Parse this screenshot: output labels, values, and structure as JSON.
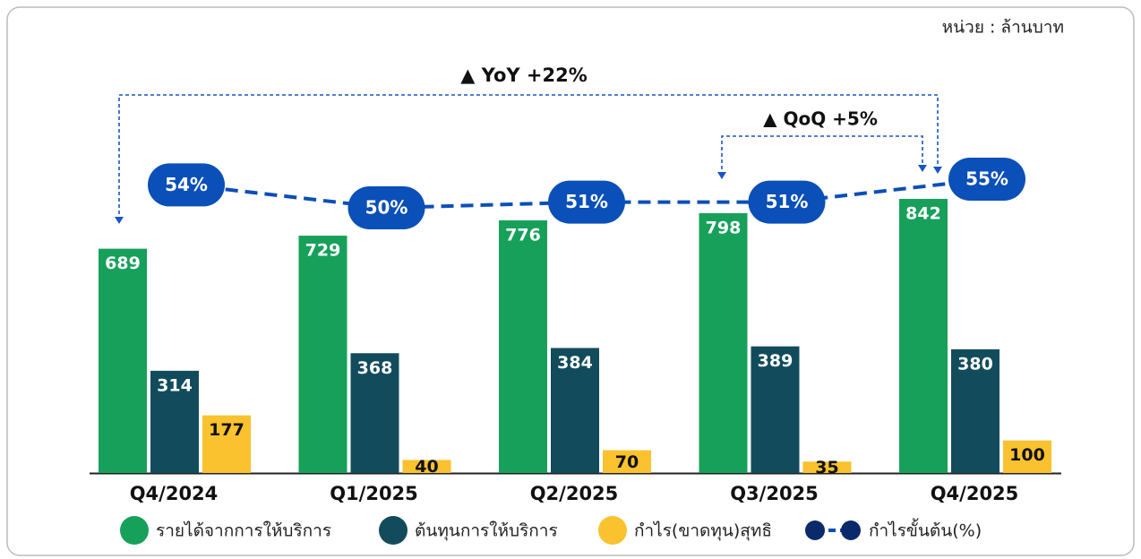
{
  "chart_data": {
    "type": "bar",
    "unit_label": "หน่วย : ล้านบาท",
    "annotations": [
      "▲ YoY +22%",
      "▲ QoQ +5%"
    ],
    "categories": [
      "Q4/2024",
      "Q1/2025",
      "Q2/2025",
      "Q3/2025",
      "Q4/2025"
    ],
    "series": [
      {
        "name": "รายได้จากการให้บริการ",
        "color": "#17a05a",
        "values": [
          689,
          729,
          776,
          798,
          842
        ]
      },
      {
        "name": "ต้นทุนการให้บริการ",
        "color": "#124c5c",
        "values": [
          314,
          368,
          384,
          389,
          380
        ]
      },
      {
        "name": "กำไร(ขาดทุน)สุทธิ",
        "color": "#f9c22e",
        "values": [
          177,
          40,
          70,
          35,
          100
        ]
      },
      {
        "name": "กำไรขั้นต้น(%)",
        "color": "#0b4fb8",
        "type": "line",
        "values": [
          54,
          50,
          51,
          51,
          55
        ],
        "value_labels": [
          "54%",
          "50%",
          "51%",
          "51%",
          "55%"
        ]
      }
    ]
  }
}
